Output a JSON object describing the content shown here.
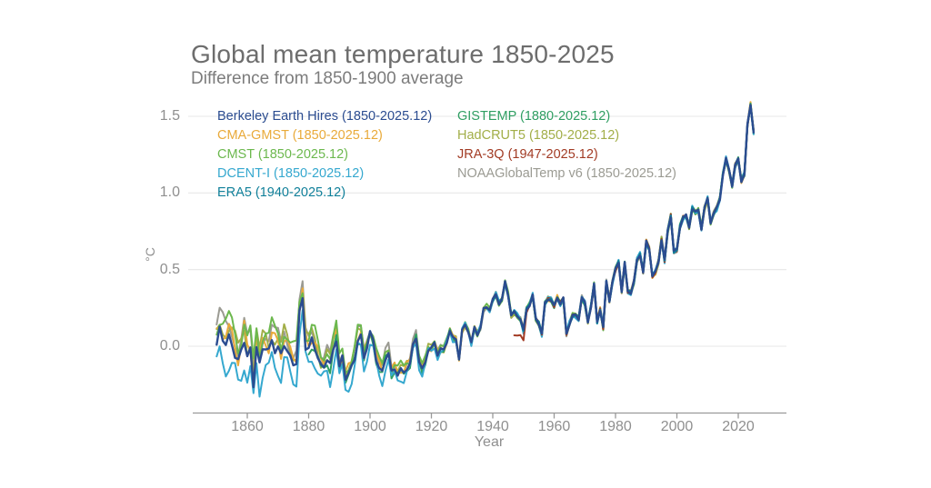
{
  "title": "Global mean temperature 1850-2025",
  "subtitle": "Difference from 1850-1900 average",
  "legend": {
    "columns": [
      [
        0,
        1,
        2,
        3,
        4
      ],
      [
        5,
        6,
        7,
        8
      ]
    ]
  },
  "chart_data": {
    "type": "line",
    "title": "Global mean temperature 1850-2025",
    "subtitle": "Difference from 1850-1900 average",
    "xlabel": "Year",
    "ylabel": "°C",
    "x_ticks": [
      1860,
      1880,
      1900,
      1920,
      1940,
      1960,
      1980,
      2000,
      2020
    ],
    "y_ticks": [
      0.0,
      0.5,
      1.0,
      1.5
    ],
    "xlim": [
      1842,
      2033
    ],
    "ylim": [
      -0.45,
      1.65
    ],
    "grid": "horizontal-only",
    "legend_position": "top",
    "baseline": "anomaly vs 1850-1900 average, annual values in °C",
    "base_start_year": 1850,
    "base_end_year": 2025,
    "base_values": [
      0,
      0.08,
      0.05,
      0.02,
      0.03,
      0,
      -0.05,
      -0.12,
      -0.05,
      0.05,
      -0.08,
      -0.05,
      -0.25,
      0,
      -0.15,
      -0.02,
      0,
      -0.05,
      0.02,
      -0.02,
      -0.02,
      -0.08,
      0.02,
      -0.03,
      -0.1,
      -0.12,
      -0.1,
      0.2,
      0.3,
      0,
      -0.03,
      0.03,
      0,
      -0.08,
      -0.15,
      -0.13,
      -0.08,
      -0.14,
      -0.03,
      0.05,
      -0.15,
      -0.08,
      -0.2,
      -0.18,
      -0.15,
      -0.08,
      0.04,
      0.05,
      -0.08,
      0,
      0.08,
      0.03,
      -0.08,
      -0.15,
      -0.18,
      -0.08,
      -0.04,
      -0.18,
      -0.15,
      -0.18,
      -0.16,
      -0.18,
      -0.14,
      -0.12,
      0,
      0.06,
      -0.1,
      -0.16,
      -0.1,
      -0.02,
      -0.02,
      0.02,
      -0.05,
      -0.02,
      -0.03,
      0.03,
      0.1,
      0.05,
      0.05,
      -0.08,
      0.1,
      0.14,
      0.1,
      0.02,
      0.12,
      0.08,
      0.12,
      0.24,
      0.26,
      0.24,
      0.3,
      0.34,
      0.28,
      0.3,
      0.42,
      0.34,
      0.2,
      0.22,
      0.2,
      0.18,
      0.1,
      0.24,
      0.27,
      0.33,
      0.18,
      0.15,
      0.08,
      0.28,
      0.31,
      0.3,
      0.26,
      0.32,
      0.28,
      0.31,
      0.08,
      0.15,
      0.2,
      0.2,
      0.18,
      0.32,
      0.28,
      0.16,
      0.26,
      0.4,
      0.16,
      0.24,
      0.12,
      0.42,
      0.3,
      0.42,
      0.5,
      0.55,
      0.36,
      0.54,
      0.36,
      0.35,
      0.42,
      0.56,
      0.6,
      0.48,
      0.68,
      0.64,
      0.46,
      0.48,
      0.55,
      0.7,
      0.56,
      0.75,
      0.85,
      0.62,
      0.63,
      0.78,
      0.84,
      0.85,
      0.78,
      0.9,
      0.87,
      0.89,
      0.77,
      0.9,
      0.96,
      0.81,
      0.87,
      0.9,
      0.96,
      1.12,
      1.22,
      1.15,
      1.05,
      1.18,
      1.22,
      1.08,
      1.12,
      1.44,
      1.58,
      1.4
    ],
    "series": [
      {
        "name": "berkeley-earth-hires",
        "label": "Berkeley Earth Hires (1850-2025.12)",
        "color": "#2b4c90",
        "start_year": 1850,
        "end": "2025.12",
        "bias_early": 0.01,
        "wobble_freq": 1.9,
        "wobble_phase": 0.0,
        "wobble_scale": 0.6,
        "width": 2.4
      },
      {
        "name": "cma-gmst",
        "label": "CMA-GMST (1850-2025.12)",
        "color": "#e9aa3a",
        "start_year": 1850,
        "end": "2025.12",
        "bias_early": 0.06,
        "wobble_freq": 1.3,
        "wobble_phase": 2.1,
        "wobble_scale": 1.0,
        "width": 2
      },
      {
        "name": "cmst",
        "label": "CMST (1850-2025.12)",
        "color": "#6cb84e",
        "start_year": 1850,
        "end": "2025.12",
        "bias_early": 0.13,
        "wobble_freq": 0.9,
        "wobble_phase": 4.0,
        "wobble_scale": 1.1,
        "width": 2
      },
      {
        "name": "dcent-i",
        "label": "DCENT-I (1850-2025.12)",
        "color": "#35a8cf",
        "start_year": 1850,
        "end": "2025.12",
        "bias_early": -0.14,
        "wobble_freq": 1.1,
        "wobble_phase": 1.2,
        "wobble_scale": 1.2,
        "width": 2
      },
      {
        "name": "era5",
        "label": "ERA5 (1940-2025.12)",
        "color": "#0f7f99",
        "start_year": 1940,
        "end": "2025.12",
        "bias_early": 0,
        "wobble_freq": 1.5,
        "wobble_phase": 0.8,
        "wobble_scale": 0.7,
        "width": 2.2
      },
      {
        "name": "gistemp",
        "label": "GISTEMP (1880-2025.12)",
        "color": "#2f9e62",
        "start_year": 1880,
        "end": "2025.12",
        "bias_early": -0.02,
        "wobble_freq": 1.2,
        "wobble_phase": 5.1,
        "wobble_scale": 0.8,
        "width": 2
      },
      {
        "name": "hadcrut5",
        "label": "HadCRUT5 (1850-2025.12)",
        "color": "#a2ae48",
        "start_year": 1850,
        "end": "2025.12",
        "bias_early": 0.09,
        "wobble_freq": 0.8,
        "wobble_phase": 2.8,
        "wobble_scale": 1.0,
        "width": 2
      },
      {
        "name": "jra-3q",
        "label": "JRA-3Q (1947-2025.12)",
        "color": "#a23b24",
        "start_year": 1947,
        "end": "2025.12",
        "bias_early": 0,
        "start_dip": -0.16,
        "wobble_freq": 1.6,
        "wobble_phase": 3.6,
        "wobble_scale": 0.7,
        "width": 2
      },
      {
        "name": "noaaglobaltemp-v6",
        "label": "NOAAGlobalTemp v6 (1850-2025.12)",
        "color": "#9b9b93",
        "start_year": 1850,
        "end": "2025.12",
        "bias_early": 0.11,
        "wobble_freq": 0.7,
        "wobble_phase": 0.5,
        "wobble_scale": 1.0,
        "width": 2
      }
    ],
    "draw_order": [
      8,
      6,
      1,
      2,
      5,
      3,
      7,
      4,
      0
    ],
    "axis_color": "#999999",
    "grid_color": "#e7e7e7"
  }
}
